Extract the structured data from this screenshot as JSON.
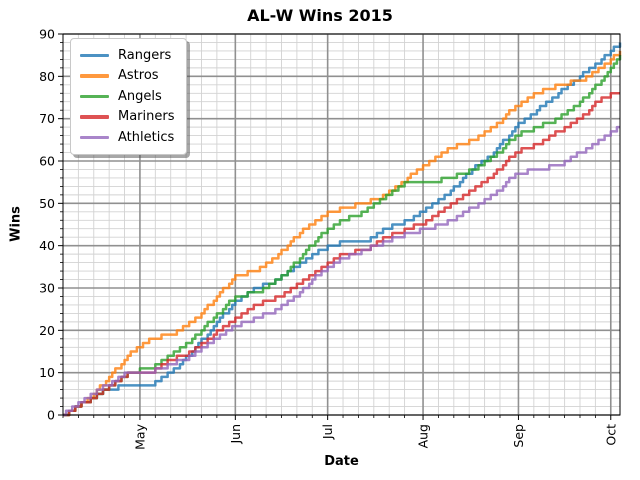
{
  "chart_data": {
    "type": "line",
    "title": "AL-W Wins 2015",
    "xlabel": "Date",
    "ylabel": "Wins",
    "ylim": [
      0,
      90
    ],
    "xlim_days": [
      0,
      181
    ],
    "grid": true,
    "legend_position": "upper left",
    "y_major_tick_interval": 10,
    "y_minor_tick_interval": 2,
    "y_tick_labels": [
      "0",
      "10",
      "20",
      "30",
      "40",
      "50",
      "60",
      "70",
      "80",
      "90"
    ],
    "x_major_ticks": [
      {
        "label": "May",
        "day": 25
      },
      {
        "label": "Jun",
        "day": 56
      },
      {
        "label": "Jul",
        "day": 86
      },
      {
        "label": "Aug",
        "day": 117
      },
      {
        "label": "Sep",
        "day": 148
      },
      {
        "label": "Oct",
        "day": 178
      }
    ],
    "x_minor_tick_month_start_days": [
      -5,
      25,
      56,
      86,
      117,
      148,
      178
    ],
    "x_minor_tick_day_offsets": [
      5,
      10,
      15,
      20,
      25
    ],
    "sample_days": [
      0,
      7,
      14,
      21,
      28,
      35,
      42,
      49,
      56,
      63,
      70,
      77,
      84,
      91,
      98,
      105,
      112,
      119,
      126,
      133,
      140,
      147,
      154,
      161,
      168,
      175,
      181
    ],
    "series": [
      {
        "name": "Rangers",
        "color": "#1f77b4",
        "alpha": 0.8,
        "wins": [
          0,
          3,
          6,
          7,
          7,
          10,
          15,
          21,
          27,
          30,
          32,
          36,
          39,
          41,
          41,
          44,
          46,
          49,
          53,
          58,
          62,
          68,
          72,
          76,
          80,
          84,
          88
        ]
      },
      {
        "name": "Astros",
        "color": "#ff7f0e",
        "alpha": 0.8,
        "wins": [
          0,
          3,
          8,
          14,
          18,
          19,
          22,
          27,
          33,
          34,
          38,
          43,
          47,
          49,
          50,
          52,
          56,
          60,
          63,
          65,
          68,
          73,
          76,
          78,
          79,
          82,
          86
        ]
      },
      {
        "name": "Angels",
        "color": "#2ca02c",
        "alpha": 0.8,
        "wins": [
          0,
          3,
          6,
          10,
          11,
          14,
          18,
          23,
          28,
          29,
          32,
          37,
          43,
          46,
          48,
          52,
          55,
          55,
          56,
          58,
          61,
          66,
          68,
          70,
          74,
          79,
          85
        ]
      },
      {
        "name": "Mariners",
        "color": "#d62728",
        "alpha": 0.8,
        "wins": [
          0,
          3,
          6,
          10,
          10,
          13,
          15,
          19,
          23,
          26,
          28,
          31,
          35,
          38,
          39,
          42,
          44,
          46,
          50,
          53,
          57,
          62,
          64,
          67,
          70,
          75,
          76
        ]
      },
      {
        "name": "Athletics",
        "color": "#9467bd",
        "alpha": 0.8,
        "wins": [
          0,
          4,
          7,
          10,
          10,
          12,
          14,
          18,
          21,
          23,
          25,
          29,
          34,
          37,
          39,
          41,
          43,
          44,
          46,
          49,
          52,
          57,
          58,
          59,
          62,
          65,
          68
        ]
      }
    ],
    "final_wins": {
      "Rangers": 88,
      "Astros": 86,
      "Angels": 85,
      "Mariners": 76,
      "Athletics": 68
    }
  },
  "colors": {
    "background": "#ffffff",
    "grid_major": "#909090",
    "grid_minor": "#d2d2d2",
    "spine": "#000000",
    "tick": "#000000",
    "legend_border": "#c8c8c8",
    "legend_bg": "#ffffff"
  }
}
